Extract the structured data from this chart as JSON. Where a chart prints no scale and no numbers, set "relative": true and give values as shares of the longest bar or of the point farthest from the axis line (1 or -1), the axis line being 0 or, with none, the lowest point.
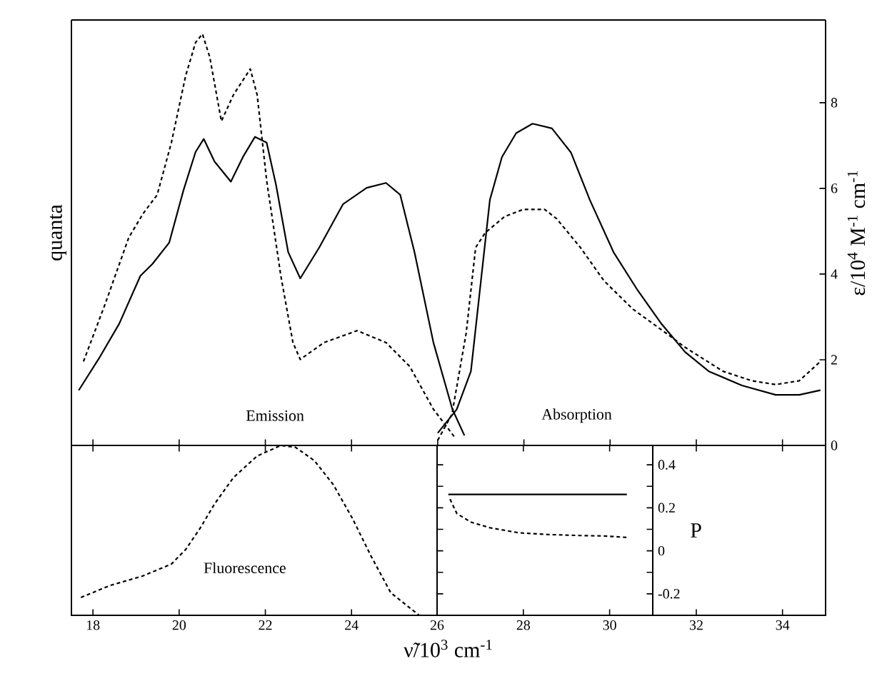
{
  "chart_data": [
    {
      "type": "line",
      "relative": true,
      "ylabel": "quanta",
      "annotations": [
        "Emission"
      ],
      "xlim": [
        17.5,
        35
      ],
      "xticks": [
        18,
        20,
        22,
        24,
        26,
        28,
        30,
        32,
        34
      ],
      "tick_labels": false,
      "series": [
        {
          "color": "#000000",
          "line_style": "solid",
          "x": [
            17.67,
            18.16,
            18.61,
            19.1,
            19.38,
            19.77,
            20.1,
            20.38,
            20.57,
            20.82,
            21.2,
            21.48,
            21.76,
            22.03,
            22.25,
            22.53,
            22.81,
            23.25,
            23.8,
            24.35,
            24.8,
            25.13,
            25.46,
            25.9,
            26.34,
            26.62
          ],
          "values": [
            0.134,
            0.215,
            0.296,
            0.412,
            0.441,
            0.493,
            0.62,
            0.713,
            0.745,
            0.69,
            0.641,
            0.701,
            0.75,
            0.736,
            0.632,
            0.47,
            0.406,
            0.481,
            0.586,
            0.626,
            0.638,
            0.609,
            0.47,
            0.25,
            0.088,
            0.024
          ]
        },
        {
          "color": "#000000",
          "line_style": "dashed",
          "x": [
            17.78,
            18.28,
            18.83,
            19.16,
            19.49,
            19.82,
            20.15,
            20.38,
            20.54,
            20.71,
            20.98,
            21.26,
            21.65,
            21.81,
            22.03,
            22.36,
            22.64,
            22.81,
            23.36,
            24.13,
            24.8,
            25.35,
            25.9,
            26.4
          ],
          "values": [
            0.204,
            0.343,
            0.505,
            0.563,
            0.609,
            0.736,
            0.898,
            0.979,
            1.0,
            0.944,
            0.788,
            0.852,
            0.915,
            0.852,
            0.644,
            0.412,
            0.25,
            0.209,
            0.25,
            0.279,
            0.25,
            0.192,
            0.088,
            0.019
          ]
        }
      ]
    },
    {
      "type": "line",
      "ylabel": "ε/10$^{4}$ M$^{-1}$ cm$^{-1}$",
      "annotations": [
        "Absorption"
      ],
      "xlim": [
        17.5,
        35
      ],
      "ylim": [
        0,
        9.93
      ],
      "yticks": [
        0,
        2,
        4,
        6,
        8
      ],
      "tick_labels": "y",
      "series": [
        {
          "color": "#000000",
          "line_style": "solid",
          "x": [
            26.0,
            26.44,
            26.77,
            26.99,
            27.21,
            27.49,
            27.82,
            28.2,
            28.65,
            29.09,
            29.53,
            30.08,
            30.64,
            31.19,
            31.74,
            32.29,
            33.06,
            33.84,
            34.39,
            34.88
          ],
          "values": [
            0.29,
            0.84,
            1.73,
            3.73,
            5.73,
            6.73,
            7.29,
            7.51,
            7.4,
            6.84,
            5.73,
            4.51,
            3.62,
            2.84,
            2.18,
            1.73,
            1.4,
            1.18,
            1.18,
            1.29
          ]
        },
        {
          "color": "#000000",
          "line_style": "dashed",
          "x": [
            26.0,
            26.33,
            26.66,
            26.88,
            27.1,
            27.55,
            27.99,
            28.48,
            28.76,
            29.31,
            29.86,
            30.53,
            31.3,
            31.74,
            32.62,
            33.29,
            33.84,
            34.39,
            34.88
          ],
          "values": [
            0.12,
            0.73,
            2.62,
            4.62,
            4.96,
            5.34,
            5.51,
            5.51,
            5.29,
            4.62,
            3.84,
            3.18,
            2.62,
            2.29,
            1.73,
            1.51,
            1.42,
            1.51,
            1.96
          ]
        }
      ]
    },
    {
      "type": "line",
      "relative": true,
      "xlabel": "ν̃/10$^{3}$ cm$^{-1}$",
      "annotations": [
        "Fluorescence"
      ],
      "xlim": [
        17.5,
        35
      ],
      "xticks": [
        18,
        20,
        22,
        24,
        32,
        34
      ],
      "tick_labels": "x",
      "series": [
        {
          "color": "#000000",
          "line_style": "dashed",
          "x": [
            17.72,
            18.39,
            19.16,
            19.82,
            20.15,
            20.49,
            20.82,
            21.26,
            21.81,
            22.36,
            22.7,
            23.14,
            23.58,
            24.02,
            24.46,
            24.91,
            25.57
          ],
          "values": [
            0.105,
            0.175,
            0.232,
            0.302,
            0.387,
            0.514,
            0.655,
            0.811,
            0.938,
            1.0,
            0.989,
            0.91,
            0.768,
            0.571,
            0.345,
            0.133,
            0
          ]
        }
      ]
    },
    {
      "type": "line",
      "ylabel": "P",
      "xlim": [
        26,
        31
      ],
      "xticks": [
        26,
        28,
        30
      ],
      "ylim": [
        -0.3,
        0.49
      ],
      "yticks": [
        -0.2,
        {
          "value": -0.1,
          "label": null
        },
        0,
        {
          "value": 0.1,
          "label": null
        },
        0.2,
        {
          "value": 0.3,
          "label": null
        },
        0.4
      ],
      "series": [
        {
          "color": "#000000",
          "line_style": "solid",
          "x": [
            26.26,
            30.4
          ],
          "values": [
            0.262,
            0.262
          ]
        },
        {
          "color": "#000000",
          "line_style": "dashed",
          "x": [
            26.3,
            26.46,
            26.79,
            27.23,
            27.89,
            28.55,
            29.32,
            29.87,
            30.42
          ],
          "values": [
            0.24,
            0.173,
            0.133,
            0.107,
            0.084,
            0.076,
            0.071,
            0.069,
            0.062
          ]
        }
      ]
    }
  ]
}
